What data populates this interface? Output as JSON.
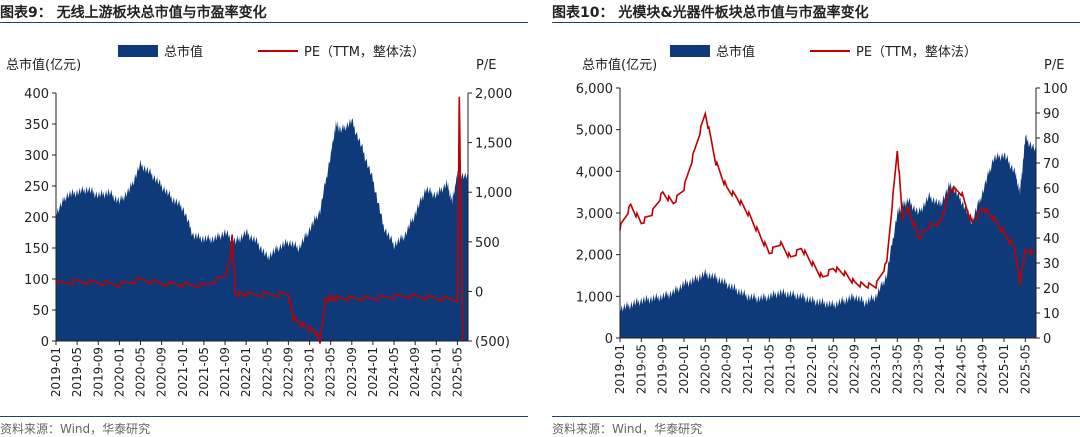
{
  "charts": [
    {
      "title": "图表9： 无线上游板块总市值与市盈率变化",
      "source": "资料来源：Wind，华泰研究",
      "chart_data": {
        "type": "area",
        "legend": [
          "总市值",
          "PE（TTM，整体法）"
        ],
        "ylabel_left": "总市值(亿元)",
        "ylabel_right": "P/E",
        "ylim_left": [
          0,
          400
        ],
        "ylim_right": [
          -500,
          2000
        ],
        "yticks_left": [
          "0",
          "50",
          "100",
          "150",
          "200",
          "250",
          "300",
          "350",
          "400"
        ],
        "yticks_right": [
          "(500)",
          "0",
          "500",
          "1,000",
          "1,500",
          "2,000"
        ],
        "x_labels": [
          "2019-01",
          "2019-05",
          "2019-09",
          "2020-01",
          "2020-05",
          "2020-09",
          "2021-01",
          "2021-05",
          "2021-09",
          "2022-01",
          "2022-05",
          "2022-09",
          "2023-01",
          "2023-05",
          "2023-09",
          "2024-01",
          "2024-05",
          "2024-09",
          "2025-01",
          "2025-05"
        ],
        "series": [
          {
            "name": "总市值",
            "color": "#0f3a7a",
            "x": [
              "2019-01",
              "2019-03",
              "2019-05",
              "2019-07",
              "2019-09",
              "2019-11",
              "2020-01",
              "2020-03",
              "2020-05",
              "2020-07",
              "2020-09",
              "2020-11",
              "2021-01",
              "2021-03",
              "2021-05",
              "2021-07",
              "2021-09",
              "2021-11",
              "2022-01",
              "2022-03",
              "2022-05",
              "2022-07",
              "2022-09",
              "2022-11",
              "2023-01",
              "2023-03",
              "2023-05",
              "2023-06",
              "2023-07",
              "2023-09",
              "2023-11",
              "2024-01",
              "2024-03",
              "2024-05",
              "2024-07",
              "2024-09",
              "2024-11",
              "2025-01",
              "2025-03",
              "2025-04",
              "2025-05",
              "2025-07"
            ],
            "values": [
              205,
              235,
              240,
              245,
              235,
              240,
              225,
              245,
              285,
              270,
              250,
              230,
              215,
              170,
              165,
              165,
              175,
              160,
              175,
              160,
              135,
              150,
              160,
              150,
              180,
              210,
              300,
              350,
              340,
              355,
              310,
              260,
              185,
              155,
              170,
              205,
              245,
              235,
              255,
              225,
              270,
              265
            ]
          },
          {
            "name": "PE（TTM，整体法）",
            "color": "#c00000",
            "x": [
              "2019-01",
              "2019-05",
              "2019-09",
              "2020-01",
              "2020-05",
              "2020-09",
              "2021-01",
              "2021-05",
              "2021-09",
              "2021-10",
              "2021-10b",
              "2021-11",
              "2022-01",
              "2022-05",
              "2022-09",
              "2022-10",
              "2022-12",
              "2023-02",
              "2023-03",
              "2023-04",
              "2023-05",
              "2023-06",
              "2023-09",
              "2024-01",
              "2024-05",
              "2024-09",
              "2025-01",
              "2025-05",
              "2025-05b",
              "2025-06"
            ],
            "values": [
              80,
              100,
              90,
              70,
              120,
              80,
              70,
              60,
              150,
              330,
              560,
              -30,
              -30,
              -30,
              -30,
              -280,
              -350,
              -400,
              -500,
              -80,
              -70,
              -70,
              -70,
              -70,
              -50,
              -50,
              -70,
              -80,
              1950,
              -500
            ]
          }
        ]
      }
    },
    {
      "title": "图表10： 光模块&光器件板块总市值与市盈率变化",
      "source": "资料来源：Wind，华泰研究",
      "chart_data": {
        "type": "area",
        "legend": [
          "总市值",
          "PE（TTM，整体法）"
        ],
        "ylabel_left": "总市值(亿元)",
        "ylabel_right": "P/E",
        "ylim_left": [
          0,
          6000
        ],
        "ylim_right": [
          0,
          100
        ],
        "yticks_left": [
          "0",
          "1,000",
          "2,000",
          "3,000",
          "4,000",
          "5,000",
          "6,000"
        ],
        "yticks_right": [
          "0",
          "10",
          "20",
          "30",
          "40",
          "50",
          "60",
          "70",
          "80",
          "90",
          "100"
        ],
        "x_labels": [
          "2019-01",
          "2019-05",
          "2019-09",
          "2020-01",
          "2020-05",
          "2020-09",
          "2021-01",
          "2021-05",
          "2021-09",
          "2022-01",
          "2022-05",
          "2022-09",
          "2023-01",
          "2023-05",
          "2023-09",
          "2024-01",
          "2024-05",
          "2024-09",
          "2025-01",
          "2025-05"
        ],
        "series": [
          {
            "name": "总市值",
            "color": "#0f3a7a",
            "x": [
              "2019-01",
              "2019-03",
              "2019-05",
              "2019-07",
              "2019-09",
              "2019-11",
              "2020-01",
              "2020-03",
              "2020-05",
              "2020-07",
              "2020-09",
              "2020-11",
              "2021-01",
              "2021-03",
              "2021-05",
              "2021-07",
              "2021-09",
              "2021-11",
              "2022-01",
              "2022-03",
              "2022-05",
              "2022-07",
              "2022-09",
              "2022-11",
              "2023-01",
              "2023-03",
              "2023-05",
              "2023-06",
              "2023-07",
              "2023-09",
              "2023-11",
              "2024-01",
              "2024-03",
              "2024-05",
              "2024-07",
              "2024-09",
              "2024-11",
              "2025-01",
              "2025-03",
              "2025-04",
              "2025-05",
              "2025-07"
            ],
            "values": [
              700,
              800,
              900,
              950,
              1000,
              1100,
              1300,
              1400,
              1550,
              1450,
              1300,
              1150,
              1000,
              950,
              1000,
              1100,
              1050,
              1000,
              900,
              850,
              800,
              900,
              1000,
              850,
              1000,
              1500,
              3000,
              3200,
              3300,
              3000,
              3400,
              3200,
              3700,
              3300,
              2800,
              3500,
              4300,
              4400,
              4000,
              3500,
              4800,
              4500
            ]
          },
          {
            "name": "PE（TTM，整体法）",
            "color": "#c00000",
            "x": [
              "2019-01",
              "2019-03",
              "2019-05",
              "2019-07",
              "2019-09",
              "2019-11",
              "2020-01",
              "2020-03",
              "2020-05",
              "2020-07",
              "2020-09",
              "2020-11",
              "2021-01",
              "2021-03",
              "2021-05",
              "2021-07",
              "2021-09",
              "2021-11",
              "2022-01",
              "2022-03",
              "2022-05",
              "2022-07",
              "2022-09",
              "2022-11",
              "2023-01",
              "2023-03",
              "2023-05",
              "2023-06",
              "2023-07",
              "2023-09",
              "2023-11",
              "2024-01",
              "2024-03",
              "2024-05",
              "2024-07",
              "2024-09",
              "2024-11",
              "2025-01",
              "2025-03",
              "2025-04",
              "2025-05",
              "2025-07"
            ],
            "values": [
              44,
              53,
              46,
              50,
              58,
              54,
              60,
              75,
              90,
              70,
              60,
              56,
              50,
              42,
              34,
              38,
              32,
              36,
              30,
              24,
              28,
              26,
              22,
              21,
              21,
              30,
              75,
              48,
              52,
              40,
              45,
              46,
              60,
              58,
              46,
              52,
              48,
              42,
              36,
              22,
              35,
              34
            ]
          }
        ]
      }
    }
  ]
}
